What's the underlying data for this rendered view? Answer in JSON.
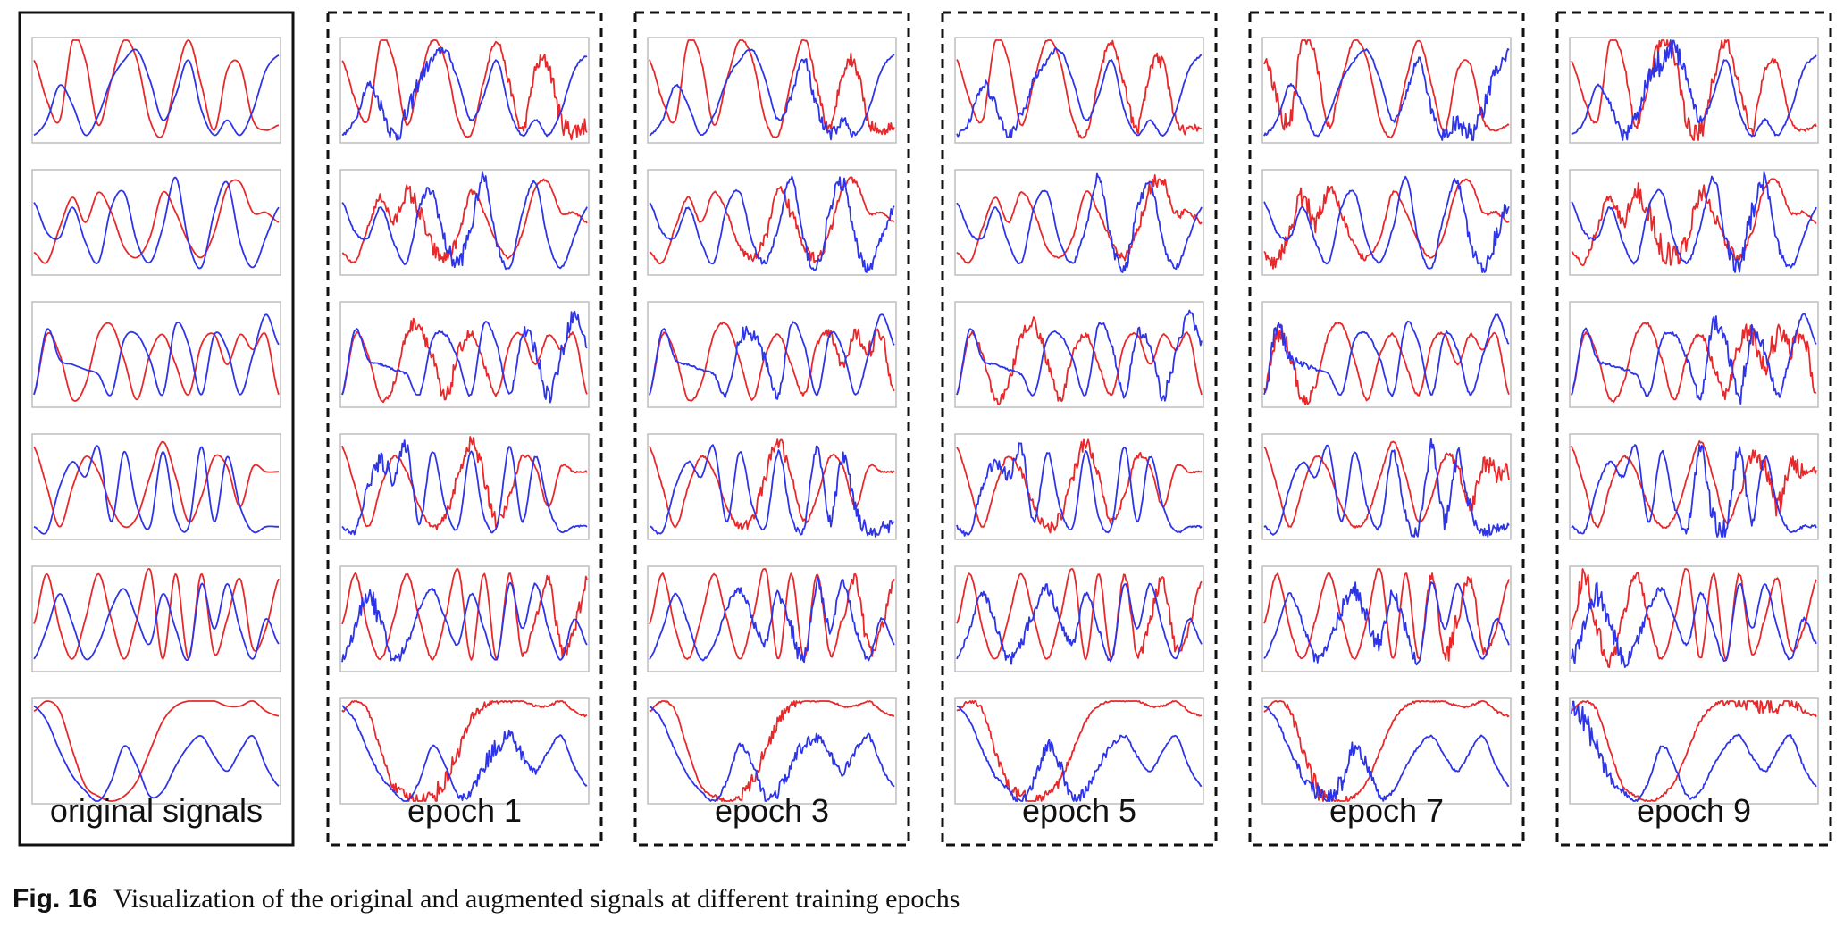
{
  "figure": {
    "caption_label": "Fig. 16",
    "caption_text": "Visualization of the original and augmented signals at different training epochs"
  },
  "chart_data": {
    "type": "line",
    "title": "",
    "xlabel": "",
    "ylabel": "",
    "grid": false,
    "columns": [
      {
        "label": "original signals",
        "border": "solid",
        "noise": 0.0
      },
      {
        "label": "epoch 1",
        "border": "dashed",
        "noise": 0.55
      },
      {
        "label": "epoch 3",
        "border": "dashed",
        "noise": 0.45
      },
      {
        "label": "epoch 5",
        "border": "dashed",
        "noise": 0.4
      },
      {
        "label": "epoch 7",
        "border": "dashed",
        "noise": 0.6
      },
      {
        "label": "epoch 9",
        "border": "dashed",
        "noise": 0.7
      }
    ],
    "rows": 6,
    "series_colors": {
      "red": "#e8292b",
      "blue": "#2e35e8"
    },
    "panels": [
      {
        "red": [
          0.8,
          0.4,
          0.2,
          1.0,
          0.8,
          0.15,
          0.6,
          1.0,
          0.8,
          0.2,
          0.05,
          0.6,
          1.0,
          0.55,
          0.1,
          0.7,
          0.75,
          0.2,
          0.1,
          0.15
        ],
        "blue": [
          0.05,
          0.2,
          0.55,
          0.35,
          0.05,
          0.25,
          0.6,
          0.8,
          0.9,
          0.6,
          0.2,
          0.45,
          0.8,
          0.3,
          0.05,
          0.2,
          0.05,
          0.3,
          0.7,
          0.85
        ]
      },
      {
        "red": [
          0.2,
          0.1,
          0.45,
          0.75,
          0.5,
          0.8,
          0.6,
          0.25,
          0.15,
          0.35,
          0.8,
          0.6,
          0.3,
          0.15,
          0.4,
          0.85,
          0.9,
          0.6,
          0.6,
          0.5
        ],
        "blue": [
          0.7,
          0.4,
          0.35,
          0.65,
          0.3,
          0.1,
          0.65,
          0.8,
          0.3,
          0.1,
          0.45,
          0.95,
          0.3,
          0.05,
          0.6,
          0.9,
          0.3,
          0.05,
          0.35,
          0.65
        ]
      },
      {
        "red": [
          0.1,
          0.7,
          0.5,
          0.05,
          0.2,
          0.7,
          0.8,
          0.45,
          0.05,
          0.5,
          0.7,
          0.4,
          0.1,
          0.6,
          0.7,
          0.4,
          0.7,
          0.55,
          0.7,
          0.1
        ],
        "blue": [
          0.1,
          0.75,
          0.45,
          0.4,
          0.35,
          0.3,
          0.1,
          0.65,
          0.7,
          0.45,
          0.1,
          0.8,
          0.6,
          0.1,
          0.7,
          0.55,
          0.1,
          0.5,
          0.9,
          0.6
        ]
      },
      {
        "red": [
          0.9,
          0.5,
          0.1,
          0.5,
          0.8,
          0.65,
          0.3,
          0.1,
          0.2,
          0.6,
          0.95,
          0.6,
          0.15,
          0.4,
          0.8,
          0.7,
          0.3,
          0.7,
          0.65,
          0.65
        ],
        "blue": [
          0.1,
          0.05,
          0.5,
          0.75,
          0.6,
          0.9,
          0.15,
          0.85,
          0.3,
          0.1,
          0.85,
          0.2,
          0.1,
          0.9,
          0.15,
          0.8,
          0.3,
          0.05,
          0.1,
          0.1
        ]
      },
      {
        "red": [
          0.45,
          0.95,
          0.4,
          0.1,
          0.5,
          0.95,
          0.5,
          0.1,
          0.5,
          1.0,
          0.1,
          0.95,
          0.1,
          0.95,
          0.15,
          0.5,
          0.9,
          0.2,
          0.4,
          0.9
        ],
        "blue": [
          0.1,
          0.4,
          0.75,
          0.45,
          0.1,
          0.25,
          0.6,
          0.8,
          0.5,
          0.25,
          0.75,
          0.4,
          0.1,
          0.85,
          0.4,
          0.85,
          0.4,
          0.1,
          0.5,
          0.25
        ]
      },
      {
        "red": [
          0.9,
          1.0,
          0.9,
          0.5,
          0.15,
          0.05,
          0.0,
          0.05,
          0.2,
          0.5,
          0.8,
          0.95,
          1.0,
          1.0,
          1.0,
          0.95,
          0.95,
          1.0,
          0.9,
          0.85
        ],
        "blue": [
          0.95,
          0.8,
          0.5,
          0.25,
          0.1,
          0.0,
          0.2,
          0.55,
          0.35,
          0.05,
          0.1,
          0.35,
          0.55,
          0.65,
          0.45,
          0.3,
          0.5,
          0.65,
          0.35,
          0.15
        ]
      }
    ]
  }
}
